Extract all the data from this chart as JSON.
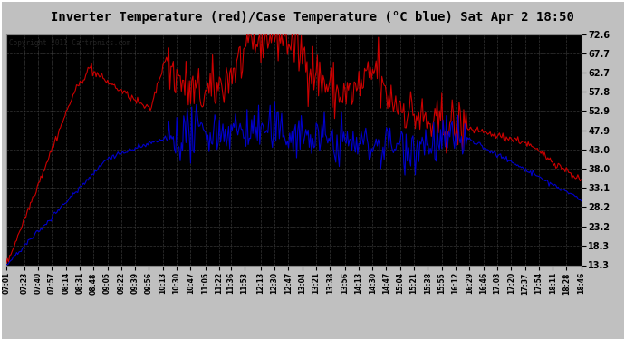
{
  "title": "Inverter Temperature (red)/Case Temperature (°C blue) Sat Apr 2 18:50",
  "copyright": "Copyright 2011 Cartronics.com",
  "ylabel_right_ticks": [
    13.3,
    18.3,
    23.2,
    28.2,
    33.1,
    38.0,
    43.0,
    47.9,
    52.9,
    57.8,
    62.7,
    67.7,
    72.6
  ],
  "ymin": 13.3,
  "ymax": 72.6,
  "bg_color": "#c8c8c8",
  "plot_bg_color": "#000000",
  "grid_color": "#555555",
  "red_line_color": "#cc0000",
  "blue_line_color": "#0000cc",
  "title_bg": "#d8d8d8",
  "x_tick_labels": [
    "07:01",
    "07:23",
    "07:40",
    "07:57",
    "08:14",
    "08:31",
    "08:48",
    "09:05",
    "09:22",
    "09:39",
    "09:56",
    "10:13",
    "10:30",
    "10:47",
    "11:05",
    "11:22",
    "11:36",
    "11:53",
    "12:13",
    "12:30",
    "12:47",
    "13:04",
    "13:21",
    "13:38",
    "13:56",
    "14:13",
    "14:30",
    "14:47",
    "15:04",
    "15:21",
    "15:38",
    "15:55",
    "16:12",
    "16:29",
    "16:46",
    "17:03",
    "17:20",
    "17:37",
    "18:11",
    "17:54",
    "18:28",
    "18:46"
  ]
}
